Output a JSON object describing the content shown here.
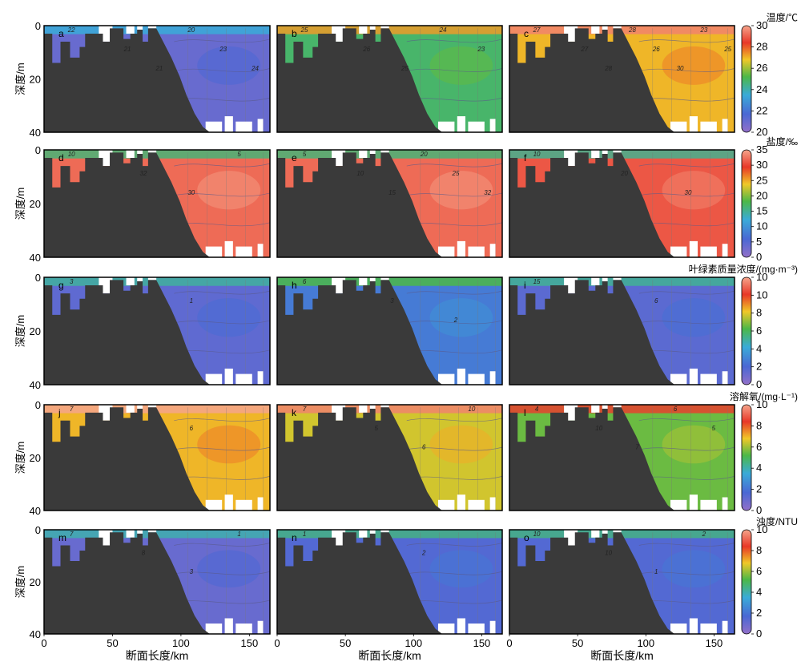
{
  "figure": {
    "y_axis_label": "深度/m",
    "x_axis_label": "断面长度/km",
    "x_ticks": [
      "0",
      "50",
      "100",
      "150"
    ],
    "y_ticks": [
      "0",
      "20",
      "40"
    ],
    "x_range": [
      0,
      165
    ],
    "y_range": [
      0,
      40
    ]
  },
  "colorbars": [
    {
      "title": "温度/℃",
      "ticks": [
        "30",
        "28",
        "26",
        "24",
        "22",
        "20"
      ]
    },
    {
      "title": "盐度/‰",
      "ticks": [
        "35",
        "30",
        "25",
        "20",
        "15",
        "10",
        "5",
        "0"
      ]
    },
    {
      "title": "叶绿素质量浓度/(mg·m⁻³)",
      "ticks": [
        "10",
        "10",
        "8",
        "6",
        "4",
        "2",
        "0"
      ]
    },
    {
      "title": "溶解氧/(mg·L⁻¹)",
      "ticks": [
        "10",
        "8",
        "6",
        "4",
        "2",
        "0"
      ]
    },
    {
      "title": "浊度/NTU",
      "ticks": [
        "10",
        "8",
        "6",
        "4",
        "2",
        "0"
      ]
    }
  ],
  "colors": {
    "terrain": "#3a3a3a",
    "frame": "#000000"
  },
  "chart_data": {
    "type": "heatmap",
    "panels": [
      {
        "letter": "a",
        "variable": "温度",
        "dominant_value": 21,
        "contour_labels": [
          "22",
          "21",
          "21",
          "20",
          "23",
          "24"
        ]
      },
      {
        "letter": "b",
        "variable": "温度",
        "dominant_value": 24.8,
        "contour_labels": [
          "25",
          "26",
          "25",
          "24",
          "23"
        ]
      },
      {
        "letter": "c",
        "variable": "温度",
        "dominant_value": 27,
        "contour_labels": [
          "27",
          "27",
          "28",
          "28",
          "26",
          "30",
          "23",
          "25"
        ]
      },
      {
        "letter": "d",
        "variable": "盐度",
        "dominant_value": 32,
        "contour_labels": [
          "10",
          "32",
          "30",
          "5"
        ]
      },
      {
        "letter": "e",
        "variable": "盐度",
        "dominant_value": 32,
        "contour_labels": [
          "5",
          "10",
          "15",
          "20",
          "25",
          "32"
        ]
      },
      {
        "letter": "f",
        "variable": "盐度",
        "dominant_value": 31,
        "contour_labels": [
          "10",
          "20",
          "30"
        ]
      },
      {
        "letter": "g",
        "variable": "叶绿素",
        "dominant_value": 1.2,
        "contour_labels": [
          "3",
          "1"
        ]
      },
      {
        "letter": "h",
        "variable": "叶绿素",
        "dominant_value": 2.2,
        "contour_labels": [
          "6",
          "3",
          "2"
        ]
      },
      {
        "letter": "i",
        "variable": "叶绿素",
        "dominant_value": 1.3,
        "contour_labels": [
          "15",
          "6"
        ]
      },
      {
        "letter": "j",
        "variable": "溶解氧",
        "dominant_value": 7,
        "contour_labels": [
          "7",
          "6"
        ]
      },
      {
        "letter": "k",
        "variable": "溶解氧",
        "dominant_value": 6.5,
        "contour_labels": [
          "7",
          "5",
          "6",
          "10"
        ]
      },
      {
        "letter": "l",
        "variable": "溶解氧",
        "dominant_value": 5.5,
        "contour_labels": [
          "4",
          "10",
          "7",
          "6",
          "5"
        ]
      },
      {
        "letter": "m",
        "variable": "浊度",
        "dominant_value": 1,
        "contour_labels": [
          "7",
          "8",
          "3",
          "1"
        ]
      },
      {
        "letter": "n",
        "variable": "浊度",
        "dominant_value": 1.5,
        "contour_labels": [
          "1",
          "2"
        ]
      },
      {
        "letter": "o",
        "variable": "浊度",
        "dominant_value": 1.5,
        "contour_labels": [
          "10",
          "10",
          "1",
          "2"
        ]
      }
    ]
  }
}
